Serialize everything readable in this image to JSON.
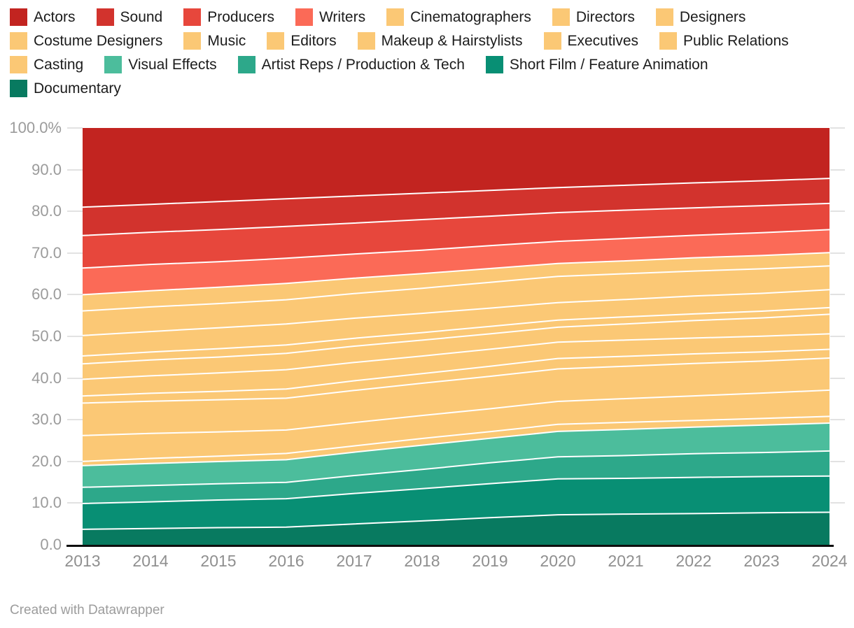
{
  "legend": {
    "items": [
      {
        "label": "Actors",
        "color": "#c22420"
      },
      {
        "label": "Sound",
        "color": "#d2332d"
      },
      {
        "label": "Producers",
        "color": "#e7473c"
      },
      {
        "label": "Writers",
        "color": "#fb6a57"
      },
      {
        "label": "Cinematographers",
        "color": "#fbc875"
      },
      {
        "label": "Directors",
        "color": "#fbc875"
      },
      {
        "label": "Designers",
        "color": "#fbc875"
      },
      {
        "label": "Costume Designers",
        "color": "#fbc875"
      },
      {
        "label": "Music",
        "color": "#fbc875"
      },
      {
        "label": "Editors",
        "color": "#fbc875"
      },
      {
        "label": "Makeup & Hairstylists",
        "color": "#fbc875"
      },
      {
        "label": "Executives",
        "color": "#fbc875"
      },
      {
        "label": "Public Relations",
        "color": "#fbc875"
      },
      {
        "label": "Casting",
        "color": "#fbc875"
      },
      {
        "label": "Visual Effects",
        "color": "#4cbd9c"
      },
      {
        "label": "Artist Reps / Production & Tech",
        "color": "#2da88a"
      },
      {
        "label": "Short Film / Feature Animation",
        "color": "#088f74"
      },
      {
        "label": "Documentary",
        "color": "#087a60"
      }
    ]
  },
  "chart_data": {
    "type": "area",
    "stacked": true,
    "percent": true,
    "title": "",
    "xlabel": "",
    "ylabel": "",
    "ylim": [
      0,
      100
    ],
    "grid": "tick-stubs-only",
    "legend_position": "top",
    "separator_color": "#ffffff",
    "x": [
      2013,
      2014,
      2015,
      2016,
      2017,
      2018,
      2019,
      2020,
      2021,
      2022,
      2023,
      2024
    ],
    "x_tick_labels": [
      "2013",
      "2014",
      "2015",
      "2016",
      "2017",
      "2018",
      "2019",
      "2020",
      "2021",
      "2022",
      "2023",
      "2024"
    ],
    "y_ticks": [
      {
        "value": 100,
        "label": "100.0%"
      },
      {
        "value": 90,
        "label": "90.0"
      },
      {
        "value": 80,
        "label": "80.0"
      },
      {
        "value": 70,
        "label": "70.0"
      },
      {
        "value": 60,
        "label": "60.0"
      },
      {
        "value": 50,
        "label": "50.0"
      },
      {
        "value": 40,
        "label": "40.0"
      },
      {
        "value": 30,
        "label": "30.0"
      },
      {
        "value": 20,
        "label": "20.0"
      },
      {
        "value": 10,
        "label": "10.0"
      },
      {
        "value": 0,
        "label": "0.0"
      }
    ],
    "series_note": "series listed top-of-stack first; stack bottom is last item (Documentary). Values are percent of total per year.",
    "series": [
      {
        "name": "Actors",
        "color": "#c22420",
        "values": [
          19.0,
          18.3,
          17.6,
          16.9,
          16.3,
          15.6,
          15.0,
          14.3,
          13.8,
          13.2,
          12.7,
          12.1
        ]
      },
      {
        "name": "Sound",
        "color": "#d2332d",
        "values": [
          6.8,
          6.7,
          6.7,
          6.6,
          6.5,
          6.3,
          6.2,
          6.0,
          6.0,
          6.0,
          6.0,
          6.0
        ]
      },
      {
        "name": "Producers",
        "color": "#e7473c",
        "values": [
          7.8,
          7.7,
          7.7,
          7.6,
          7.4,
          7.3,
          7.1,
          6.9,
          6.8,
          6.6,
          6.5,
          6.3
        ]
      },
      {
        "name": "Writers",
        "color": "#fb6a57",
        "values": [
          6.4,
          6.3,
          6.1,
          6.0,
          5.8,
          5.6,
          5.5,
          5.3,
          5.4,
          5.4,
          5.5,
          5.5
        ]
      },
      {
        "name": "Cinematographers",
        "color": "#fbc875",
        "values": [
          3.9,
          3.9,
          3.9,
          3.9,
          3.7,
          3.5,
          3.3,
          3.1,
          3.1,
          3.2,
          3.2,
          3.2
        ]
      },
      {
        "name": "Directors",
        "color": "#fbc875",
        "values": [
          5.9,
          5.9,
          5.8,
          5.8,
          5.9,
          6.0,
          6.2,
          6.3,
          6.2,
          6.0,
          5.9,
          5.7
        ]
      },
      {
        "name": "Designers",
        "color": "#fbc875",
        "values": [
          4.9,
          4.9,
          5.0,
          5.0,
          4.8,
          4.6,
          4.4,
          4.2,
          4.2,
          4.3,
          4.3,
          4.3
        ]
      },
      {
        "name": "Costume Designers",
        "color": "#fbc875",
        "values": [
          1.9,
          1.9,
          2.0,
          2.0,
          1.9,
          1.8,
          1.8,
          1.7,
          1.7,
          1.6,
          1.6,
          1.6
        ]
      },
      {
        "name": "Music",
        "color": "#fbc875",
        "values": [
          3.7,
          3.8,
          3.8,
          3.9,
          3.9,
          3.8,
          3.7,
          3.6,
          3.9,
          4.2,
          4.4,
          4.7
        ]
      },
      {
        "name": "Editors",
        "color": "#fbc875",
        "values": [
          4.0,
          4.2,
          4.4,
          4.6,
          4.4,
          4.2,
          4.1,
          3.9,
          3.9,
          3.8,
          3.8,
          3.7
        ]
      },
      {
        "name": "Makeup & Hairstylists",
        "color": "#fbc875",
        "values": [
          1.7,
          1.9,
          2.0,
          2.2,
          2.3,
          2.3,
          2.4,
          2.5,
          2.4,
          2.3,
          2.2,
          2.1
        ]
      },
      {
        "name": "Executives",
        "color": "#fbc875",
        "values": [
          7.8,
          7.7,
          7.7,
          7.6,
          7.7,
          7.7,
          7.8,
          7.8,
          7.8,
          7.8,
          7.7,
          7.7
        ]
      },
      {
        "name": "Public Relations",
        "color": "#fbc875",
        "values": [
          6.2,
          6.0,
          5.8,
          5.6,
          5.6,
          5.5,
          5.5,
          5.5,
          5.7,
          5.9,
          6.1,
          6.3
        ]
      },
      {
        "name": "Casting",
        "color": "#fbc875",
        "values": [
          1.0,
          1.2,
          1.3,
          1.5,
          1.5,
          1.6,
          1.6,
          1.7,
          1.7,
          1.6,
          1.6,
          1.6
        ]
      },
      {
        "name": "Visual Effects",
        "color": "#4cbd9c",
        "values": [
          5.2,
          5.3,
          5.3,
          5.4,
          5.6,
          5.8,
          5.9,
          6.1,
          6.3,
          6.4,
          6.6,
          6.7
        ]
      },
      {
        "name": "Artist Reps / Production & Tech",
        "color": "#2da88a",
        "values": [
          3.9,
          3.9,
          3.9,
          3.9,
          4.3,
          4.6,
          5.0,
          5.3,
          5.5,
          5.7,
          5.8,
          6.0
        ]
      },
      {
        "name": "Short Film / Feature Animation",
        "color": "#088f74",
        "values": [
          6.2,
          6.4,
          6.6,
          6.8,
          7.3,
          7.7,
          8.2,
          8.6,
          8.6,
          8.7,
          8.7,
          8.7
        ]
      },
      {
        "name": "Documentary",
        "color": "#087a60",
        "values": [
          3.7,
          3.9,
          4.1,
          4.2,
          5.0,
          5.7,
          6.5,
          7.2,
          7.4,
          7.5,
          7.7,
          7.8
        ]
      }
    ]
  },
  "footer": {
    "credit": "Created with Datawrapper"
  }
}
